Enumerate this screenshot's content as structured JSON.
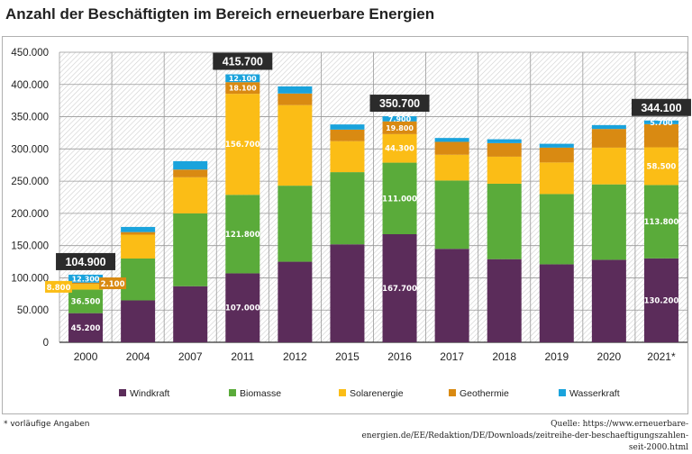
{
  "title": "Anzahl der Beschäftigten im Bereich erneuerbare Energien",
  "footnote": "* vorläufige Angaben",
  "source": "Quelle: https://www.erneuerbare-energien.de/EE/Redaktion/DE/Downloads/zeitreihe-der-beschaeftigungszahlen-seit-2000.html",
  "colors": {
    "Windkraft": "#5b2c5a",
    "Biomasse": "#5aab3a",
    "Solarenergie": "#fbbd16",
    "Geothermie": "#d98a12",
    "Wasserkraft": "#1aa3dc"
  },
  "chart_data": {
    "type": "bar",
    "stacked": true,
    "categories": [
      "2000",
      "2004",
      "2007",
      "2011",
      "2012",
      "2015",
      "2016",
      "2017",
      "2018",
      "2019",
      "2020",
      "2021*"
    ],
    "series": [
      {
        "name": "Windkraft",
        "values": [
          45200,
          65000,
          87000,
          107000,
          125000,
          152000,
          167700,
          145000,
          129000,
          121000,
          128000,
          130200
        ]
      },
      {
        "name": "Biomasse",
        "values": [
          36500,
          65000,
          113000,
          121800,
          118000,
          112000,
          111000,
          106000,
          117000,
          109000,
          117000,
          113800
        ]
      },
      {
        "name": "Solarenergie",
        "values": [
          8800,
          37000,
          56000,
          156700,
          125000,
          48000,
          44300,
          40000,
          42000,
          49000,
          57000,
          58500
        ]
      },
      {
        "name": "Geothermie",
        "values": [
          2100,
          4000,
          12000,
          18100,
          18000,
          18000,
          19800,
          20000,
          21000,
          23000,
          29000,
          35900
        ]
      },
      {
        "name": "Wasserkraft",
        "values": [
          12300,
          8000,
          13000,
          12100,
          11000,
          8000,
          7900,
          6000,
          6000,
          6000,
          6000,
          5700
        ]
      }
    ],
    "totals": [
      {
        "category": "2000",
        "label": "104.900"
      },
      {
        "category": "2011",
        "label": "415.700"
      },
      {
        "category": "2016",
        "label": "350.700"
      },
      {
        "category": "2021*",
        "label": "344.100"
      }
    ],
    "segment_labels": [
      {
        "category": "2000",
        "series": "Windkraft",
        "label": "45.200"
      },
      {
        "category": "2000",
        "series": "Biomasse",
        "label": "36.500"
      },
      {
        "category": "2000",
        "series": "Solarenergie",
        "label": "8.800",
        "callout": "left"
      },
      {
        "category": "2000",
        "series": "Geothermie",
        "label": "2.100",
        "callout": "right"
      },
      {
        "category": "2000",
        "series": "Wasserkraft",
        "label": "12.300"
      },
      {
        "category": "2011",
        "series": "Windkraft",
        "label": "107.000"
      },
      {
        "category": "2011",
        "series": "Biomasse",
        "label": "121.800"
      },
      {
        "category": "2011",
        "series": "Solarenergie",
        "label": "156.700"
      },
      {
        "category": "2011",
        "series": "Geothermie",
        "label": "18.100"
      },
      {
        "category": "2011",
        "series": "Wasserkraft",
        "label": "12.100"
      },
      {
        "category": "2016",
        "series": "Windkraft",
        "label": "167.700"
      },
      {
        "category": "2016",
        "series": "Biomasse",
        "label": "111.000"
      },
      {
        "category": "2016",
        "series": "Solarenergie",
        "label": "44.300"
      },
      {
        "category": "2016",
        "series": "Geothermie",
        "label": "19.800"
      },
      {
        "category": "2016",
        "series": "Wasserkraft",
        "label": "7.900"
      },
      {
        "category": "2021*",
        "series": "Windkraft",
        "label": "130.200"
      },
      {
        "category": "2021*",
        "series": "Biomasse",
        "label": "113.800"
      },
      {
        "category": "2021*",
        "series": "Solarenergie",
        "label": "58.500"
      },
      {
        "category": "2021*",
        "series": "Wasserkraft",
        "label": "5.700"
      }
    ],
    "y_ticks": [
      {
        "value": 0,
        "label": "0"
      },
      {
        "value": 50000,
        "label": "50.000"
      },
      {
        "value": 100000,
        "label": "100.000"
      },
      {
        "value": 150000,
        "label": "150.000"
      },
      {
        "value": 200000,
        "label": "200.000"
      },
      {
        "value": 250000,
        "label": "250.000"
      },
      {
        "value": 300000,
        "label": "300.000"
      },
      {
        "value": 350000,
        "label": "350.000"
      },
      {
        "value": 400000,
        "label": "400.000"
      },
      {
        "value": 450000,
        "label": "450.000"
      }
    ],
    "ylim": [
      0,
      450000
    ],
    "grid": true,
    "legend_position": "bottom",
    "xlabel": "",
    "ylabel": ""
  }
}
